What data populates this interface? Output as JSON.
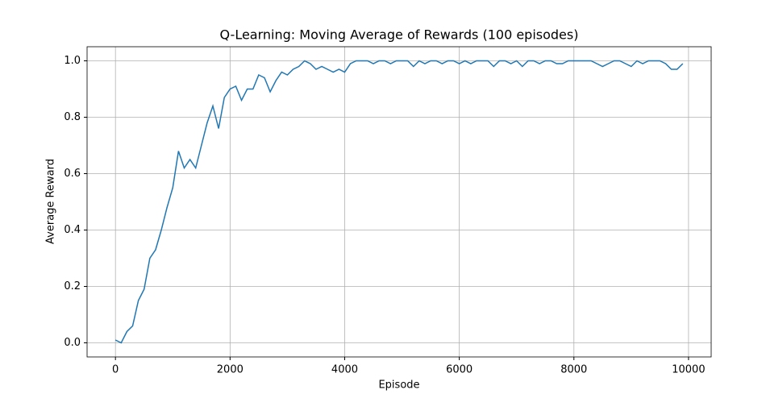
{
  "chart_data": {
    "type": "line",
    "title": "Q-Learning: Moving Average of Rewards (100 episodes)",
    "xlabel": "Episode",
    "ylabel": "Average Reward",
    "x": [
      0,
      100,
      200,
      300,
      400,
      500,
      600,
      700,
      800,
      900,
      1000,
      1100,
      1200,
      1300,
      1400,
      1500,
      1600,
      1700,
      1800,
      1900,
      2000,
      2100,
      2200,
      2300,
      2400,
      2500,
      2600,
      2700,
      2800,
      2900,
      3000,
      3100,
      3200,
      3300,
      3400,
      3500,
      3600,
      3700,
      3800,
      3900,
      4000,
      4100,
      4200,
      4300,
      4400,
      4500,
      4600,
      4700,
      4800,
      4900,
      5000,
      5100,
      5200,
      5300,
      5400,
      5500,
      5600,
      5700,
      5800,
      5900,
      6000,
      6100,
      6200,
      6300,
      6400,
      6500,
      6600,
      6700,
      6800,
      6900,
      7000,
      7100,
      7200,
      7300,
      7400,
      7500,
      7600,
      7700,
      7800,
      7900,
      8000,
      8100,
      8200,
      8300,
      8400,
      8500,
      8600,
      8700,
      8800,
      8900,
      9000,
      9100,
      9200,
      9300,
      9400,
      9500,
      9600,
      9700,
      9800,
      9900
    ],
    "series": [
      {
        "name": "Moving Average",
        "color": "#1f77b4",
        "values": [
          0.01,
          0.0,
          0.04,
          0.06,
          0.15,
          0.19,
          0.3,
          0.33,
          0.4,
          0.48,
          0.55,
          0.68,
          0.62,
          0.65,
          0.62,
          0.7,
          0.78,
          0.84,
          0.76,
          0.87,
          0.9,
          0.91,
          0.86,
          0.9,
          0.9,
          0.95,
          0.94,
          0.89,
          0.93,
          0.96,
          0.95,
          0.97,
          0.98,
          1.0,
          0.99,
          0.97,
          0.98,
          0.97,
          0.96,
          0.97,
          0.96,
          0.99,
          1.0,
          1.0,
          1.0,
          0.99,
          1.0,
          1.0,
          0.99,
          1.0,
          1.0,
          1.0,
          0.98,
          1.0,
          0.99,
          1.0,
          1.0,
          0.99,
          1.0,
          1.0,
          0.99,
          1.0,
          0.99,
          1.0,
          1.0,
          1.0,
          0.98,
          1.0,
          1.0,
          0.99,
          1.0,
          0.98,
          1.0,
          1.0,
          0.99,
          1.0,
          1.0,
          0.99,
          0.99,
          1.0,
          1.0,
          1.0,
          1.0,
          1.0,
          0.99,
          0.98,
          0.99,
          1.0,
          1.0,
          0.99,
          0.98,
          1.0,
          0.99,
          1.0,
          1.0,
          1.0,
          0.99,
          0.97,
          0.97,
          0.99
        ]
      }
    ],
    "xlim": [
      -495,
      10395
    ],
    "ylim": [
      -0.05,
      1.05
    ],
    "xticks": [
      0,
      2000,
      4000,
      6000,
      8000,
      10000
    ],
    "yticks": [
      {
        "value": 0,
        "label": "0.0"
      },
      0.2,
      0.4,
      0.6,
      0.8,
      {
        "value": 1,
        "label": "1.0"
      }
    ],
    "grid": true
  }
}
